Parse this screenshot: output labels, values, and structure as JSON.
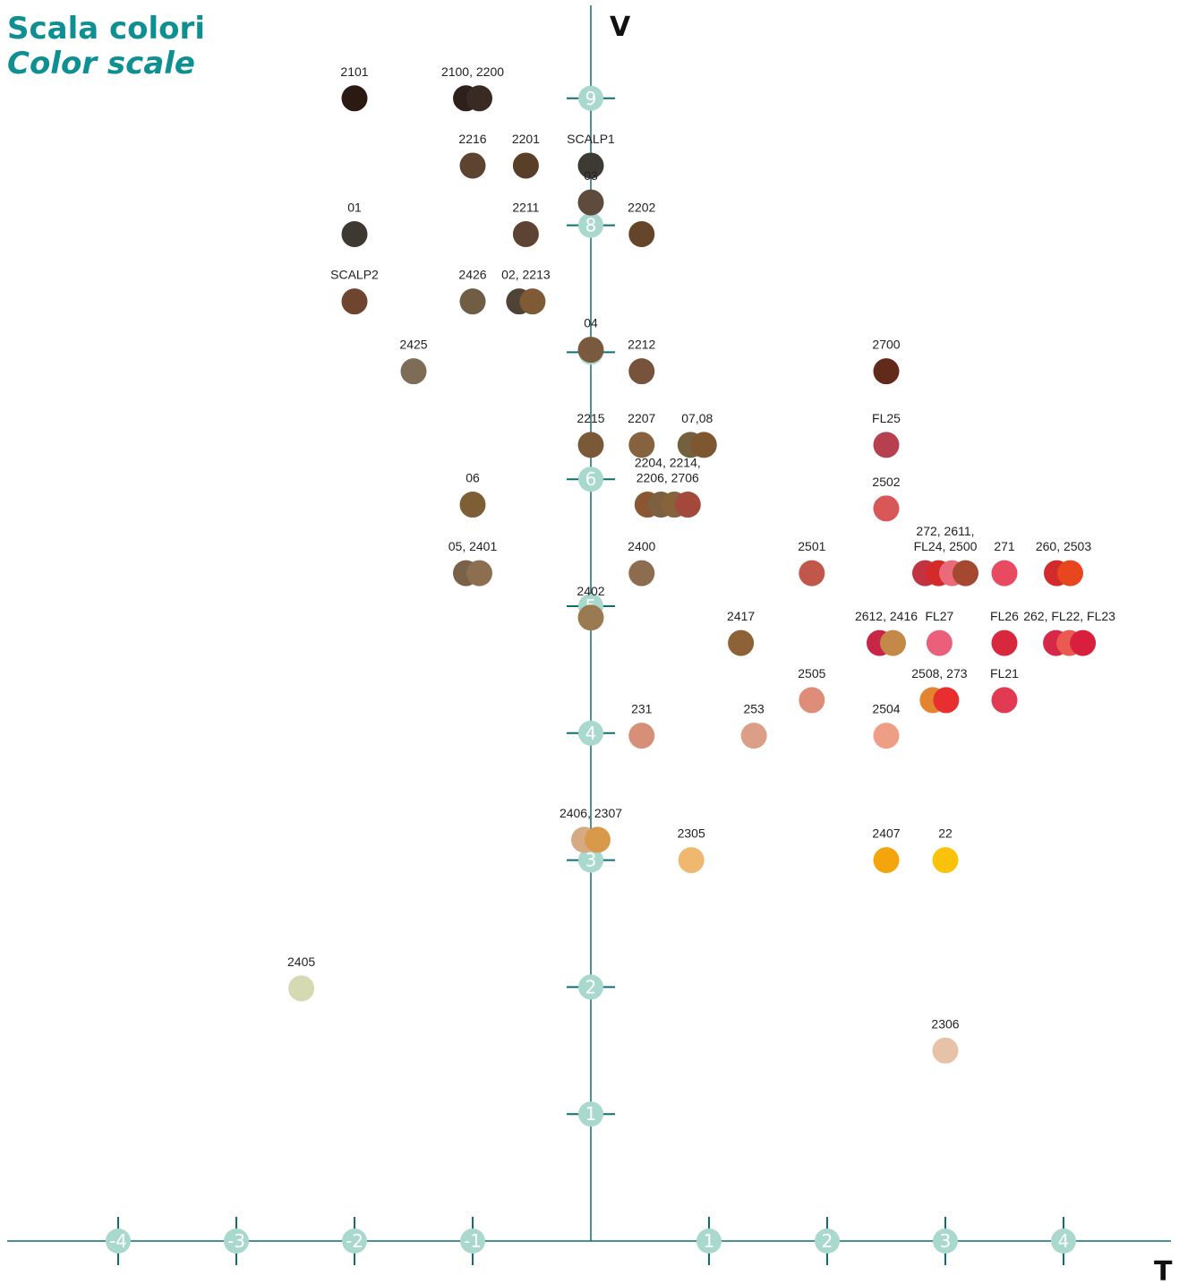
{
  "title": "Scala colori",
  "subtitle": "Color scale",
  "colors": {
    "axis": "#0e6e74",
    "tick_bubble": "#a9d8cc",
    "title": "#0e8f92"
  },
  "chart_data": {
    "type": "scatter",
    "xlabel": "T",
    "ylabel": "V",
    "xlim": [
      -4.4,
      4.6
    ],
    "ylim": [
      0,
      9.5
    ],
    "x_ticks": [
      "-4",
      "-3",
      "-2",
      "-1",
      "1",
      "2",
      "3",
      "4"
    ],
    "y_ticks": [
      "1",
      "2",
      "3",
      "4",
      "5",
      "6",
      "7",
      "8",
      "9"
    ],
    "groups": [
      {
        "label": "2101",
        "x": -2.0,
        "y": 9.0,
        "colors": [
          "#2a1a12"
        ]
      },
      {
        "label": "2100, 2200",
        "x": -1.0,
        "y": 9.0,
        "colors": [
          "#2e211b",
          "#3a2a24"
        ]
      },
      {
        "label": "2216",
        "x": -1.0,
        "y": 8.47,
        "colors": [
          "#5c4530"
        ]
      },
      {
        "label": "2201",
        "x": -0.55,
        "y": 8.47,
        "colors": [
          "#5a3f28"
        ]
      },
      {
        "label": "SCALP1",
        "x": 0.0,
        "y": 8.47,
        "colors": [
          "#3c3a32"
        ]
      },
      {
        "label": "03",
        "x": 0.0,
        "y": 8.18,
        "colors": [
          "#5e4b3c"
        ]
      },
      {
        "label": "01",
        "x": -2.0,
        "y": 7.93,
        "colors": [
          "#3e3832"
        ]
      },
      {
        "label": "2211",
        "x": -0.55,
        "y": 7.93,
        "colors": [
          "#5d4333"
        ]
      },
      {
        "label": "2202",
        "x": 0.43,
        "y": 7.93,
        "colors": [
          "#644529"
        ]
      },
      {
        "label": "SCALP2",
        "x": -2.0,
        "y": 7.4,
        "colors": [
          "#6f4530"
        ]
      },
      {
        "label": "2426",
        "x": -1.0,
        "y": 7.4,
        "colors": [
          "#705d44"
        ]
      },
      {
        "label": "02, 2213",
        "x": -0.55,
        "y": 7.4,
        "colors": [
          "#4f4338",
          "#7e5a36"
        ]
      },
      {
        "label": "04",
        "x": 0.0,
        "y": 7.02,
        "colors": [
          "#7a5a3e"
        ]
      },
      {
        "label": "2425",
        "x": -1.5,
        "y": 6.85,
        "colors": [
          "#7e6d56"
        ]
      },
      {
        "label": "2212",
        "x": 0.43,
        "y": 6.85,
        "colors": [
          "#76533a"
        ]
      },
      {
        "label": "2700",
        "x": 2.5,
        "y": 6.85,
        "colors": [
          "#622a1a"
        ]
      },
      {
        "label": "2215",
        "x": 0.0,
        "y": 6.27,
        "colors": [
          "#7a5939"
        ]
      },
      {
        "label": "2207",
        "x": 0.43,
        "y": 6.27,
        "colors": [
          "#86623f"
        ]
      },
      {
        "label": "07,08",
        "x": 0.9,
        "y": 6.27,
        "colors": [
          "#73603c",
          "#7e5730"
        ]
      },
      {
        "label": "FL25",
        "x": 2.5,
        "y": 6.27,
        "colors": [
          "#b6404f"
        ]
      },
      {
        "label": "06",
        "x": -1.0,
        "y": 5.8,
        "colors": [
          "#7d5e35"
        ]
      },
      {
        "label": "2204, 2214, 2206, 2706",
        "x": 0.65,
        "y": 5.8,
        "colors": [
          "#8b5632",
          "#7c603f",
          "#86633a",
          "#a5483c"
        ]
      },
      {
        "label": "2502",
        "x": 2.5,
        "y": 5.77,
        "colors": [
          "#d85858"
        ]
      },
      {
        "label": "05, 2401",
        "x": -1.0,
        "y": 5.26,
        "colors": [
          "#7a6248",
          "#8c6f50"
        ]
      },
      {
        "label": "2400",
        "x": 0.43,
        "y": 5.26,
        "colors": [
          "#8d6c50"
        ]
      },
      {
        "label": "2501",
        "x": 1.87,
        "y": 5.26,
        "colors": [
          "#c0574a"
        ]
      },
      {
        "label": "272, 2611, FL24, 2500",
        "x": 3.0,
        "y": 5.26,
        "colors": [
          "#c23341",
          "#d42a2a",
          "#ea6a7a",
          "#a44830"
        ]
      },
      {
        "label": "271",
        "x": 3.5,
        "y": 5.26,
        "colors": [
          "#e84a62"
        ]
      },
      {
        "label": "260, 2503",
        "x": 4.0,
        "y": 5.26,
        "colors": [
          "#d22b2b",
          "#e8461e"
        ]
      },
      {
        "label": "2402",
        "x": 0.0,
        "y": 4.91,
        "colors": [
          "#9a7a50"
        ]
      },
      {
        "label": "2417",
        "x": 1.27,
        "y": 4.71,
        "colors": [
          "#8e6237"
        ]
      },
      {
        "label": "2612, 2416",
        "x": 2.5,
        "y": 4.71,
        "colors": [
          "#c82646",
          "#c48848"
        ]
      },
      {
        "label": "FL27",
        "x": 2.95,
        "y": 4.71,
        "colors": [
          "#ea607a"
        ]
      },
      {
        "label": "FL26",
        "x": 3.5,
        "y": 4.71,
        "colors": [
          "#d8283e"
        ]
      },
      {
        "label": "262, FL22, FL23",
        "x": 4.05,
        "y": 4.71,
        "colors": [
          "#d8284a",
          "#ea5a50",
          "#d8203e"
        ]
      },
      {
        "label": "2505",
        "x": 1.87,
        "y": 4.26,
        "colors": [
          "#de8e78"
        ]
      },
      {
        "label": "2508, 273",
        "x": 2.95,
        "y": 4.26,
        "colors": [
          "#e38430",
          "#e82e2e"
        ]
      },
      {
        "label": "FL21",
        "x": 3.5,
        "y": 4.26,
        "colors": [
          "#e23a52"
        ]
      },
      {
        "label": "231",
        "x": 0.43,
        "y": 3.98,
        "colors": [
          "#d69078"
        ]
      },
      {
        "label": "253",
        "x": 1.38,
        "y": 3.98,
        "colors": [
          "#dc9e86"
        ]
      },
      {
        "label": "2504",
        "x": 2.5,
        "y": 3.98,
        "colors": [
          "#ef9e86"
        ]
      },
      {
        "label": "2406, 2307",
        "x": 0.0,
        "y": 3.16,
        "colors": [
          "#d6aa82",
          "#d89a4a"
        ]
      },
      {
        "label": "2305",
        "x": 0.85,
        "y": 3.0,
        "colors": [
          "#f0b86e"
        ]
      },
      {
        "label": "2407",
        "x": 2.5,
        "y": 3.0,
        "colors": [
          "#f5a50c"
        ]
      },
      {
        "label": "22",
        "x": 3.0,
        "y": 3.0,
        "colors": [
          "#fbc20a"
        ]
      },
      {
        "label": "2405",
        "x": -2.45,
        "y": 1.99,
        "colors": [
          "#d6dab2"
        ]
      },
      {
        "label": "2306",
        "x": 3.0,
        "y": 1.5,
        "colors": [
          "#e8c2a6"
        ]
      }
    ]
  }
}
